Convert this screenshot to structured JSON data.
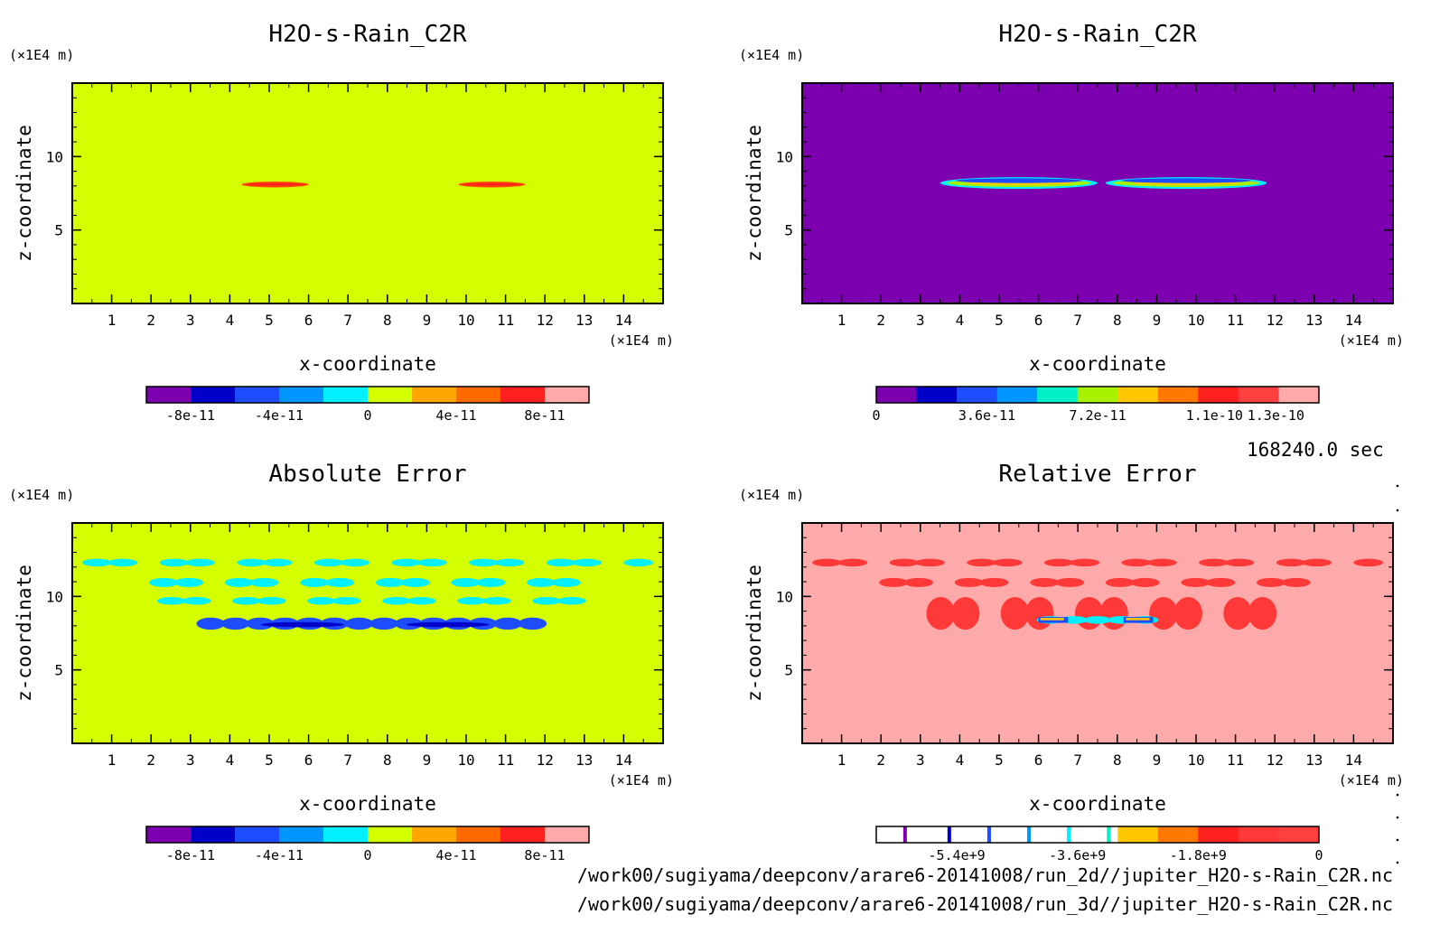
{
  "time_label": "168240.0 sec",
  "files": [
    "/work00/sugiyama/deepconv/arare6-20141008/run_2d//jupiter_H2O-s-Rain_C2R.nc",
    "/work00/sugiyama/deepconv/arare6-20141008/run_3d//jupiter_H2O-s-Rain_C2R.nc"
  ],
  "chart_data": [
    {
      "type": "heatmap",
      "title": "H2O-s-Rain_C2R",
      "xlabel": "x-coordinate",
      "ylabel": "z-coordinate",
      "x_unit": "(×1E4 m)",
      "y_unit": "(×1E4 m)",
      "xlim": [
        0,
        15
      ],
      "ylim": [
        0,
        15
      ],
      "xticks": [
        1,
        2,
        3,
        4,
        5,
        6,
        7,
        8,
        9,
        10,
        11,
        12,
        13,
        14
      ],
      "yticks": [
        5,
        10
      ],
      "background": "#d4ff00",
      "features": [
        {
          "x": [
            4.3,
            6.0
          ],
          "z": [
            7.9,
            8.3
          ],
          "value": 6e-11,
          "color": "#ff4400"
        },
        {
          "x": [
            9.8,
            11.5
          ],
          "z": [
            7.9,
            8.3
          ],
          "value": 6e-11,
          "color": "#ff4400"
        }
      ],
      "colorbar": {
        "colors": [
          "#7c00b0",
          "#0000c8",
          "#1e4cff",
          "#0096ff",
          "#00f0ff",
          "#d4ff00",
          "#ffa600",
          "#ff6a00",
          "#ff2020",
          "#ffaaaa"
        ],
        "tick_labels": [
          "-8e-11",
          "-4e-11",
          "0",
          "4e-11",
          "8e-11"
        ],
        "tick_values": [
          -8e-11,
          -4e-11,
          0,
          4e-11,
          8e-11
        ],
        "range": [
          -1e-10,
          1e-10
        ]
      }
    },
    {
      "type": "heatmap",
      "title": "H2O-s-Rain_C2R",
      "xlabel": "x-coordinate",
      "ylabel": "z-coordinate",
      "x_unit": "(×1E4 m)",
      "y_unit": "(×1E4 m)",
      "xlim": [
        0,
        15
      ],
      "ylim": [
        0,
        15
      ],
      "xticks": [
        1,
        2,
        3,
        4,
        5,
        6,
        7,
        8,
        9,
        10,
        11,
        12,
        13,
        14
      ],
      "yticks": [
        5,
        10
      ],
      "background": "#7c00b0",
      "features": [
        {
          "x": [
            3.5,
            7.5
          ],
          "z": [
            7.8,
            8.6
          ],
          "value": 7.2e-11,
          "color": "#00f0ff"
        },
        {
          "x": [
            7.7,
            11.8
          ],
          "z": [
            7.8,
            8.6
          ],
          "value": 7.2e-11,
          "color": "#00f0ff"
        }
      ],
      "colorbar": {
        "colors": [
          "#7c00b0",
          "#0000c8",
          "#1e4cff",
          "#0096ff",
          "#00f0c8",
          "#a8f000",
          "#ffc800",
          "#ff7800",
          "#ff2020",
          "#ff4040",
          "#ffaaaa"
        ],
        "tick_labels": [
          "0",
          "3.6e-11",
          "7.2e-11",
          "1.1e-10",
          "1.3e-10"
        ],
        "tick_values": [
          0,
          3.6e-11,
          7.2e-11,
          1.1e-10,
          1.3e-10
        ],
        "range": [
          0,
          1.44e-10
        ]
      }
    },
    {
      "type": "heatmap",
      "title": "Absolute Error",
      "xlabel": "x-coordinate",
      "ylabel": "z-coordinate",
      "x_unit": "(×1E4 m)",
      "y_unit": "(×1E4 m)",
      "xlim": [
        0,
        15
      ],
      "ylim": [
        0,
        15
      ],
      "xticks": [
        1,
        2,
        3,
        4,
        5,
        6,
        7,
        8,
        9,
        10,
        11,
        12,
        13,
        14
      ],
      "yticks": [
        5,
        10
      ],
      "background": "#d4ff00",
      "features": [
        {
          "x": [
            0.3,
            14.7
          ],
          "z": [
            12.1,
            12.5
          ],
          "value": -1e-11,
          "color": "#00f0ff"
        },
        {
          "x": [
            2.0,
            13.5
          ],
          "z": [
            10.7,
            11.2
          ],
          "value": -1e-11,
          "color": "#00f0ff"
        },
        {
          "x": [
            2.2,
            13.0
          ],
          "z": [
            9.5,
            9.9
          ],
          "value": -1e-11,
          "color": "#00f0ff"
        },
        {
          "x": [
            3.2,
            12.0
          ],
          "z": [
            7.8,
            8.5
          ],
          "value": -5e-11,
          "color": "#1e4cff"
        }
      ],
      "colorbar": {
        "colors": [
          "#7c00b0",
          "#0000c8",
          "#1e4cff",
          "#0096ff",
          "#00f0ff",
          "#d4ff00",
          "#ffa600",
          "#ff6a00",
          "#ff2020",
          "#ffaaaa"
        ],
        "tick_labels": [
          "-8e-11",
          "-4e-11",
          "0",
          "4e-11",
          "8e-11"
        ],
        "tick_values": [
          -8e-11,
          -4e-11,
          0,
          4e-11,
          8e-11
        ],
        "range": [
          -1e-10,
          1e-10
        ]
      }
    },
    {
      "type": "heatmap",
      "title": "Relative Error",
      "xlabel": "x-coordinate",
      "ylabel": "z-coordinate",
      "x_unit": "(×1E4 m)",
      "y_unit": "(×1E4 m)",
      "xlim": [
        0,
        15
      ],
      "ylim": [
        0,
        15
      ],
      "xticks": [
        1,
        2,
        3,
        4,
        5,
        6,
        7,
        8,
        9,
        10,
        11,
        12,
        13,
        14
      ],
      "yticks": [
        5,
        10
      ],
      "background": "#ffaaaa",
      "features": [
        {
          "x": [
            0.3,
            14.7
          ],
          "z": [
            12.1,
            12.5
          ],
          "value": -0.2,
          "color": "#ff3838"
        },
        {
          "x": [
            2.0,
            13.5
          ],
          "z": [
            10.7,
            11.2
          ],
          "value": -0.2,
          "color": "#ff3838"
        },
        {
          "x": [
            3.2,
            12.0
          ],
          "z": [
            7.8,
            9.9
          ],
          "value": -0.2,
          "color": "#ff3838"
        },
        {
          "x": [
            6.0,
            9.0
          ],
          "z": [
            8.2,
            8.6
          ],
          "value": -3600000000.0,
          "color": "#00f0ff"
        }
      ],
      "colorbar": {
        "colors": [
          "#ffffff",
          "#ffffff",
          "#ffffff",
          "#ffffff",
          "#ffffff",
          "#ffffff",
          "#ffc800",
          "#ff7800",
          "#ff2020",
          "#ff3838",
          "#ff4040"
        ],
        "markers": [
          {
            "at": 0.065,
            "color": "#7c00b0"
          },
          {
            "at": 0.165,
            "color": "#0000c8"
          },
          {
            "at": 0.255,
            "color": "#1e4cff"
          },
          {
            "at": 0.345,
            "color": "#0096ff"
          },
          {
            "at": 0.435,
            "color": "#00f0ff"
          },
          {
            "at": 0.525,
            "color": "#00f0c8"
          }
        ],
        "tick_labels": [
          "-5.4e+9",
          "-3.6e+9",
          "-1.8e+9",
          "0"
        ],
        "tick_values": [
          -5400000000.0,
          -3600000000.0,
          -1800000000.0,
          0
        ],
        "range": [
          -6600000000.0,
          0
        ]
      }
    }
  ]
}
